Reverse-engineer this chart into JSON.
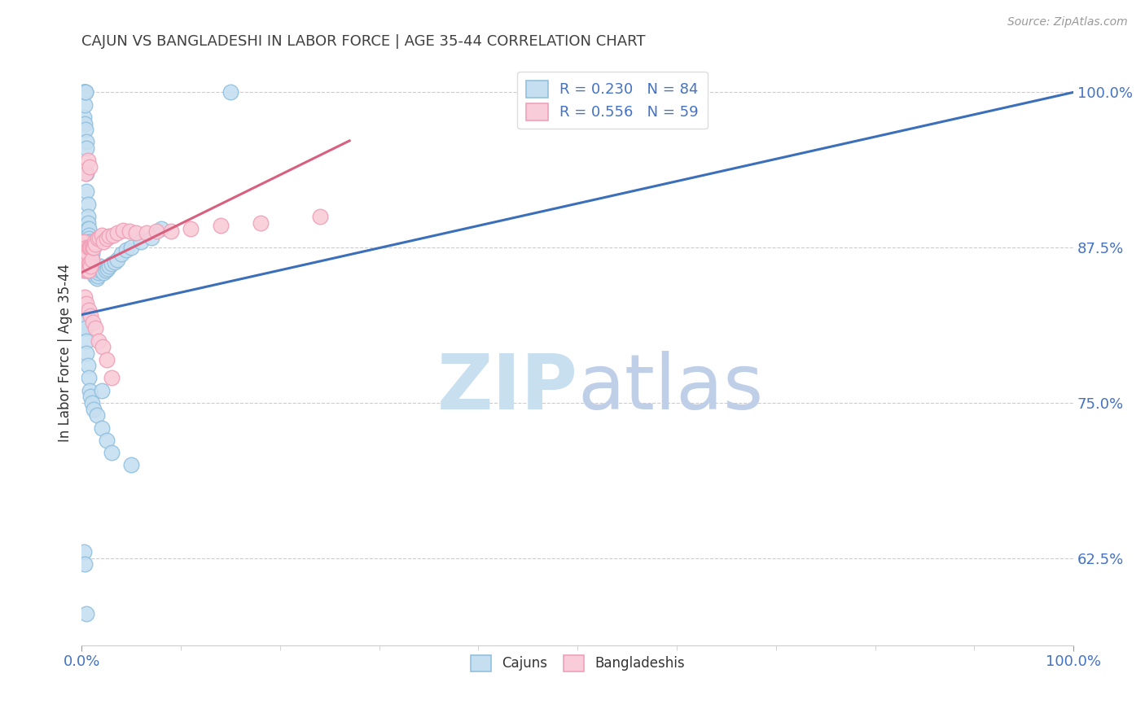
{
  "title": "CAJUN VS BANGLADESHI IN LABOR FORCE | AGE 35-44 CORRELATION CHART",
  "source": "Source: ZipAtlas.com",
  "ylabel": "In Labor Force | Age 35-44",
  "ytick_labels": [
    "100.0%",
    "87.5%",
    "75.0%",
    "62.5%"
  ],
  "ytick_values": [
    1.0,
    0.875,
    0.75,
    0.625
  ],
  "xlim": [
    0.0,
    1.0
  ],
  "ylim": [
    0.555,
    1.025
  ],
  "legend_cajun_r": "R = 0.230",
  "legend_cajun_n": "N = 84",
  "legend_bangladeshi_r": "R = 0.556",
  "legend_bangladeshi_n": "N = 59",
  "cajun_color": "#92c0df",
  "cajun_face_color": "#c5dff0",
  "bangladeshi_color": "#f0a0b8",
  "bangladeshi_face_color": "#f8ccd8",
  "line_cajun_color": "#3b6fba",
  "line_bangladeshi_color": "#d95f7f",
  "watermark_zip_color": "#c8dff0",
  "watermark_atlas_color": "#c0cfe8",
  "background_color": "#ffffff",
  "grid_color": "#cccccc",
  "title_color": "#404040",
  "axis_label_color": "#4472c4",
  "cajun_x": [
    0.001,
    0.002,
    0.002,
    0.002,
    0.003,
    0.003,
    0.003,
    0.003,
    0.004,
    0.004,
    0.004,
    0.005,
    0.005,
    0.005,
    0.005,
    0.006,
    0.006,
    0.006,
    0.006,
    0.007,
    0.007,
    0.007,
    0.007,
    0.008,
    0.008,
    0.008,
    0.008,
    0.009,
    0.009,
    0.009,
    0.01,
    0.01,
    0.01,
    0.011,
    0.011,
    0.012,
    0.012,
    0.013,
    0.013,
    0.014,
    0.015,
    0.015,
    0.016,
    0.017,
    0.018,
    0.019,
    0.02,
    0.022,
    0.024,
    0.026,
    0.028,
    0.03,
    0.033,
    0.036,
    0.04,
    0.045,
    0.05,
    0.06,
    0.07,
    0.08,
    0.001,
    0.002,
    0.003,
    0.003,
    0.004,
    0.004,
    0.005,
    0.005,
    0.006,
    0.007,
    0.008,
    0.009,
    0.01,
    0.012,
    0.015,
    0.02,
    0.025,
    0.03,
    0.05,
    0.02,
    0.002,
    0.003,
    0.005,
    0.15
  ],
  "cajun_y": [
    0.857,
    1.0,
    1.0,
    0.98,
    1.0,
    1.0,
    0.99,
    0.975,
    1.0,
    1.0,
    0.97,
    0.96,
    0.955,
    0.935,
    0.92,
    0.91,
    0.9,
    0.895,
    0.89,
    0.89,
    0.885,
    0.882,
    0.88,
    0.88,
    0.878,
    0.875,
    0.872,
    0.875,
    0.87,
    0.868,
    0.87,
    0.865,
    0.86,
    0.862,
    0.857,
    0.858,
    0.855,
    0.857,
    0.852,
    0.855,
    0.857,
    0.85,
    0.852,
    0.855,
    0.857,
    0.86,
    0.857,
    0.855,
    0.857,
    0.858,
    0.86,
    0.862,
    0.863,
    0.865,
    0.87,
    0.873,
    0.875,
    0.88,
    0.883,
    0.89,
    0.82,
    0.81,
    0.83,
    0.82,
    0.815,
    0.81,
    0.8,
    0.79,
    0.78,
    0.77,
    0.76,
    0.755,
    0.75,
    0.745,
    0.74,
    0.73,
    0.72,
    0.71,
    0.7,
    0.76,
    0.63,
    0.62,
    0.58,
    1.0
  ],
  "bangladeshi_x": [
    0.001,
    0.001,
    0.002,
    0.002,
    0.003,
    0.003,
    0.003,
    0.004,
    0.004,
    0.004,
    0.005,
    0.005,
    0.005,
    0.006,
    0.006,
    0.007,
    0.007,
    0.007,
    0.008,
    0.008,
    0.009,
    0.009,
    0.01,
    0.01,
    0.011,
    0.012,
    0.013,
    0.014,
    0.016,
    0.018,
    0.02,
    0.022,
    0.025,
    0.028,
    0.032,
    0.036,
    0.042,
    0.048,
    0.055,
    0.065,
    0.075,
    0.09,
    0.11,
    0.14,
    0.18,
    0.24,
    0.003,
    0.005,
    0.007,
    0.009,
    0.011,
    0.014,
    0.017,
    0.021,
    0.025,
    0.03,
    0.004,
    0.006,
    0.008
  ],
  "bangladeshi_y": [
    0.88,
    0.87,
    0.88,
    0.86,
    0.87,
    0.86,
    0.857,
    0.87,
    0.865,
    0.857,
    0.875,
    0.862,
    0.857,
    0.87,
    0.857,
    0.875,
    0.862,
    0.857,
    0.875,
    0.862,
    0.875,
    0.86,
    0.875,
    0.865,
    0.875,
    0.875,
    0.88,
    0.878,
    0.882,
    0.883,
    0.885,
    0.88,
    0.882,
    0.884,
    0.885,
    0.887,
    0.889,
    0.888,
    0.887,
    0.887,
    0.888,
    0.888,
    0.89,
    0.893,
    0.895,
    0.9,
    0.835,
    0.83,
    0.825,
    0.82,
    0.815,
    0.81,
    0.8,
    0.795,
    0.785,
    0.77,
    0.935,
    0.945,
    0.94
  ],
  "cajun_line_x0": 0.0,
  "cajun_line_x1": 1.0,
  "cajun_line_y0": 0.821,
  "cajun_line_y1": 1.0,
  "bangladeshi_line_x0": 0.0,
  "bangladeshi_line_x1": 0.27,
  "bangladeshi_line_y0": 0.855,
  "bangladeshi_line_y1": 0.961
}
